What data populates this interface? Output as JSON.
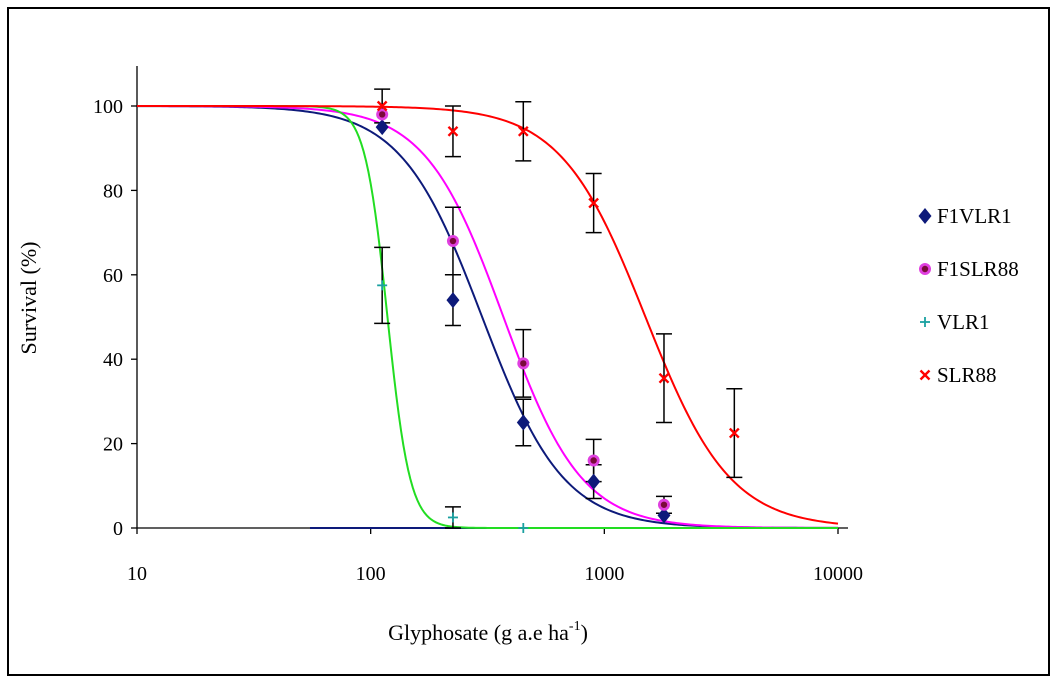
{
  "chart_data": {
    "type": "scatter",
    "title": "",
    "xlabel": "Glyphosate (g a.e ha",
    "xlabel_sup": "-1",
    "xlabel_suffix": ")",
    "ylabel": "Survival (%)",
    "xscale": "log",
    "xlim": [
      10,
      10000
    ],
    "ylim": [
      0,
      100
    ],
    "x_ticks": [
      "10",
      "100",
      "1000",
      "10000"
    ],
    "y_ticks": [
      "0",
      "20",
      "40",
      "60",
      "80",
      "100"
    ],
    "legend_position": "right",
    "series": [
      {
        "name": "F1VLR1",
        "marker": "diamond",
        "color": "#0d1a7a",
        "curve_color": "#0d1a7a",
        "x": [
          112,
          225,
          450,
          900,
          1800
        ],
        "y": [
          95,
          54,
          25,
          11,
          3
        ],
        "err": [
          null,
          6,
          5.5,
          4,
          null
        ],
        "fit": {
          "top": 100,
          "bottom": 0,
          "ed50": 300,
          "slope": 2.5
        }
      },
      {
        "name": "F1SLR88",
        "marker": "circle",
        "color": "#e040e0",
        "curve_color": "#ff00ff",
        "x": [
          112,
          225,
          450,
          900,
          1800
        ],
        "y": [
          98,
          68,
          39,
          16,
          5.5
        ],
        "err": [
          null,
          8,
          8,
          5,
          2
        ],
        "fit": {
          "top": 100,
          "bottom": 0,
          "ed50": 370,
          "slope": 2.6
        }
      },
      {
        "name": "VLR1",
        "marker": "plus",
        "color": "#1aa0a0",
        "curve_color": "#22dd22",
        "x": [
          112,
          225,
          450
        ],
        "y": [
          57.5,
          2.5,
          0
        ],
        "err": [
          9,
          2.5,
          null
        ],
        "fit": {
          "top": 100,
          "bottom": 0,
          "ed50": 118,
          "slope": 9
        }
      },
      {
        "name": "SLR88",
        "marker": "x",
        "color": "#ff0000",
        "curve_color": "#ff0000",
        "x": [
          112,
          225,
          450,
          900,
          1800,
          3600
        ],
        "y": [
          100,
          94,
          94,
          77,
          35.5,
          22.5
        ],
        "err": [
          4,
          6,
          7,
          7,
          10.5,
          10.5
        ],
        "fit": {
          "top": 100,
          "bottom": 0,
          "ed50": 1500,
          "slope": 2.4
        }
      }
    ],
    "baseline_color": "#0d1a7a"
  }
}
